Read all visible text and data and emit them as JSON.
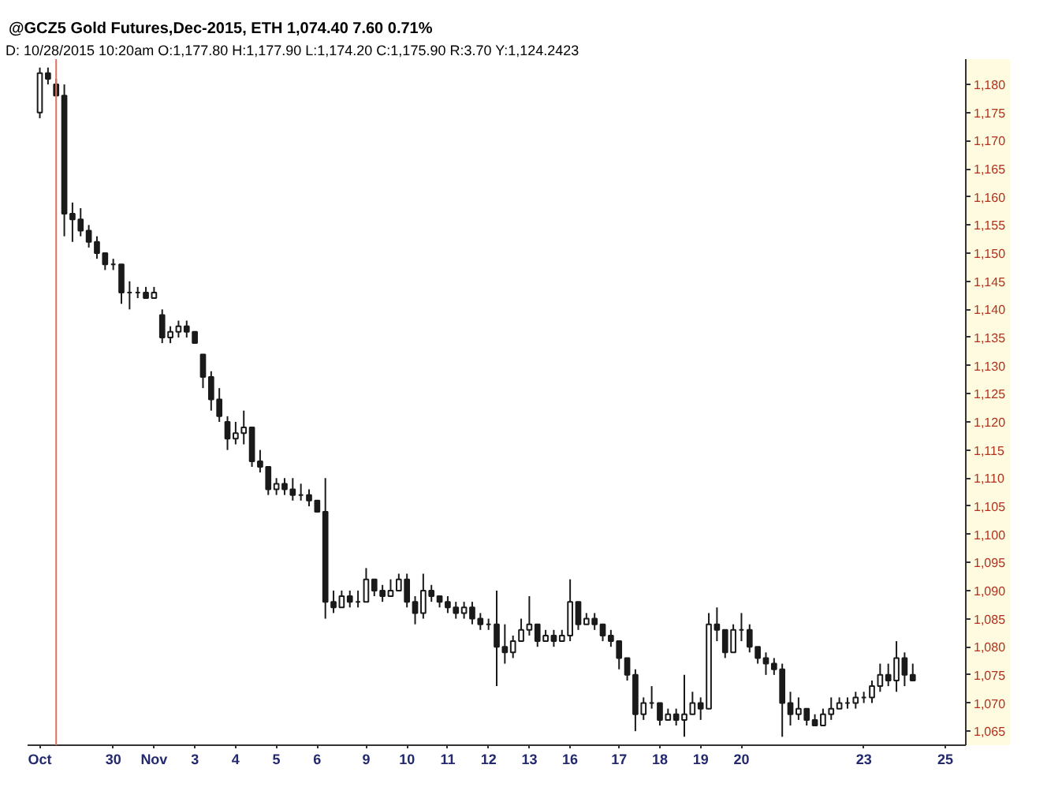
{
  "chart_data": {
    "type": "candlestick",
    "title": "@GCZ5 Gold Futures,Dec-2015, ETH  1,074.40  7.60  0.71%",
    "subtitle": "D: 10/28/2015  10:20am O:1,177.80 H:1,177.90 L:1,174.20 C:1,175.90 R:3.70 Y:1,124.2423",
    "color": "#1a1a1a",
    "categories": [
      null,
      "Oct",
      null,
      null,
      null,
      null,
      null,
      null,
      null,
      null,
      "30",
      null,
      null,
      null,
      null,
      "Nov",
      null,
      null,
      null,
      null,
      "3",
      null,
      null,
      null,
      null,
      "4",
      null,
      null,
      null,
      null,
      "5",
      null,
      null,
      null,
      null,
      "6",
      null,
      null,
      null,
      null,
      null,
      "9",
      null,
      null,
      null,
      null,
      "10",
      null,
      null,
      null,
      null,
      "11",
      null,
      null,
      null,
      null,
      "12",
      null,
      null,
      null,
      null,
      "13",
      null,
      null,
      null,
      null,
      "16",
      null,
      null,
      null,
      null,
      null,
      "17",
      null,
      null,
      null,
      null,
      "18",
      null,
      null,
      null,
      null,
      "19",
      null,
      null,
      null,
      null,
      "20",
      null,
      null,
      null,
      null,
      null,
      null,
      null,
      null,
      null,
      null,
      null,
      null,
      null,
      null,
      "23",
      null,
      null,
      null,
      null,
      null,
      null,
      null,
      null,
      null,
      "25",
      null,
      null
    ],
    "ohlc": [
      null,
      [
        1175,
        1183,
        1174,
        1182
      ],
      [
        1182,
        1183,
        1180,
        1181
      ],
      [
        1180,
        1181,
        1178,
        1178
      ],
      [
        1178,
        1180,
        1153,
        1157
      ],
      [
        1157,
        1159,
        1152,
        1156
      ],
      [
        1156,
        1158,
        1153,
        1154
      ],
      [
        1154,
        1155,
        1151,
        1152
      ],
      [
        1152,
        1153,
        1149,
        1150
      ],
      [
        1150,
        1150,
        1147,
        1148
      ],
      [
        1148,
        1149,
        1147,
        1148
      ],
      [
        1148,
        1148,
        1141,
        1143
      ],
      [
        1143,
        1145,
        1140,
        1143
      ],
      [
        1143,
        1144,
        1142,
        1143
      ],
      [
        1143,
        1144,
        1142,
        1142
      ],
      [
        1142,
        1144,
        1142,
        1143
      ],
      [
        1139,
        1140,
        1134,
        1135
      ],
      [
        1135,
        1137,
        1134,
        1136
      ],
      [
        1136,
        1138,
        1135,
        1137
      ],
      [
        1137,
        1138,
        1135,
        1136
      ],
      [
        1136,
        1136,
        1134,
        1134
      ],
      [
        1132,
        1132,
        1126,
        1128
      ],
      [
        1128,
        1129,
        1122,
        1124
      ],
      [
        1124,
        1126,
        1120,
        1121
      ],
      [
        1120,
        1121,
        1115,
        1117
      ],
      [
        1117,
        1120,
        1116,
        1118
      ],
      [
        1118,
        1122,
        1116,
        1119
      ],
      [
        1119,
        1119,
        1112,
        1113
      ],
      [
        1113,
        1115,
        1111,
        1112
      ],
      [
        1112,
        1112,
        1107,
        1108
      ],
      [
        1108,
        1110,
        1107,
        1109
      ],
      [
        1109,
        1110,
        1107,
        1108
      ],
      [
        1108,
        1110,
        1106,
        1107
      ],
      [
        1107,
        1109,
        1106,
        1107
      ],
      [
        1107,
        1108,
        1105,
        1106
      ],
      [
        1106,
        1106,
        1104,
        1104
      ],
      [
        1104,
        1110,
        1085,
        1088
      ],
      [
        1088,
        1090,
        1086,
        1087
      ],
      [
        1087,
        1090,
        1087,
        1089
      ],
      [
        1089,
        1090,
        1087,
        1088
      ],
      [
        1088,
        1090,
        1087,
        1088
      ],
      [
        1088,
        1094,
        1088,
        1092
      ],
      [
        1092,
        1092,
        1089,
        1090
      ],
      [
        1090,
        1091,
        1088,
        1089
      ],
      [
        1089,
        1092,
        1089,
        1090
      ],
      [
        1090,
        1093,
        1090,
        1092
      ],
      [
        1092,
        1093,
        1087,
        1088
      ],
      [
        1088,
        1089,
        1084,
        1086
      ],
      [
        1086,
        1093,
        1085,
        1090
      ],
      [
        1090,
        1091,
        1088,
        1089
      ],
      [
        1089,
        1089,
        1087,
        1088
      ],
      [
        1088,
        1089,
        1086,
        1087
      ],
      [
        1087,
        1088,
        1085,
        1086
      ],
      [
        1086,
        1088,
        1085,
        1087
      ],
      [
        1087,
        1088,
        1084,
        1085
      ],
      [
        1085,
        1086,
        1083,
        1084
      ],
      [
        1084,
        1085,
        1083,
        1084
      ],
      [
        1084,
        1090,
        1073,
        1080
      ],
      [
        1080,
        1084,
        1077,
        1079
      ],
      [
        1079,
        1082,
        1078,
        1081
      ],
      [
        1081,
        1085,
        1081,
        1083
      ],
      [
        1083,
        1089,
        1082,
        1084
      ],
      [
        1084,
        1084,
        1080,
        1081
      ],
      [
        1081,
        1083,
        1081,
        1082
      ],
      [
        1082,
        1083,
        1080,
        1081
      ],
      [
        1081,
        1083,
        1081,
        1082
      ],
      [
        1082,
        1092,
        1081,
        1088
      ],
      [
        1088,
        1088,
        1083,
        1084
      ],
      [
        1084,
        1086,
        1084,
        1085
      ],
      [
        1085,
        1086,
        1083,
        1084
      ],
      [
        1084,
        1084,
        1081,
        1082
      ],
      [
        1082,
        1083,
        1080,
        1081
      ],
      [
        1081,
        1081,
        1076,
        1078
      ],
      [
        1078,
        1078,
        1074,
        1075
      ],
      [
        1075,
        1076,
        1065,
        1068
      ],
      [
        1068,
        1071,
        1067,
        1070
      ],
      [
        1070,
        1073,
        1069,
        1070
      ],
      [
        1070,
        1070,
        1066,
        1067
      ],
      [
        1067,
        1069,
        1067,
        1068
      ],
      [
        1068,
        1069,
        1066,
        1067
      ],
      [
        1067,
        1075,
        1064,
        1068
      ],
      [
        1068,
        1072,
        1068,
        1070
      ],
      [
        1070,
        1071,
        1067,
        1069
      ],
      [
        1069,
        1086,
        1069,
        1084
      ],
      [
        1084,
        1087,
        1081,
        1083
      ],
      [
        1083,
        1083,
        1078,
        1079
      ],
      [
        1079,
        1084,
        1079,
        1083
      ],
      [
        1083,
        1086,
        1081,
        1083
      ],
      [
        1083,
        1084,
        1079,
        1080
      ],
      [
        1080,
        1080,
        1077,
        1078
      ],
      [
        1078,
        1079,
        1075,
        1077
      ],
      [
        1077,
        1078,
        1075,
        1076
      ],
      [
        1076,
        1077,
        1064,
        1070
      ],
      [
        1070,
        1072,
        1066,
        1068
      ],
      [
        1068,
        1071,
        1067,
        1069
      ],
      [
        1069,
        1069,
        1066,
        1067
      ],
      [
        1067,
        1068,
        1066,
        1066
      ],
      [
        1066,
        1069,
        1066,
        1068
      ],
      [
        1068,
        1071,
        1067,
        1069
      ],
      [
        1069,
        1071,
        1069,
        1070
      ],
      [
        1070,
        1071,
        1069,
        1070
      ],
      [
        1070,
        1072,
        1069,
        1071
      ],
      [
        1071,
        1072,
        1070,
        1071
      ],
      [
        1071,
        1074,
        1070,
        1073
      ],
      [
        1073,
        1077,
        1072,
        1075
      ],
      [
        1075,
        1077,
        1073,
        1074
      ],
      [
        1074,
        1081,
        1072,
        1078
      ],
      [
        1078,
        1079,
        1073,
        1075
      ],
      [
        1075,
        1077,
        1074,
        1074
      ],
      null,
      null,
      null,
      null,
      null,
      null
    ],
    "ylim": [
      1062.5,
      1184.5
    ],
    "yticks": [
      {
        "value": 1065,
        "label": "1,065"
      },
      {
        "value": 1070,
        "label": "1,070"
      },
      {
        "value": 1075,
        "label": "1,075"
      },
      {
        "value": 1080,
        "label": "1,080"
      },
      {
        "value": 1085,
        "label": "1,085"
      },
      {
        "value": 1090,
        "label": "1,090"
      },
      {
        "value": 1095,
        "label": "1,095"
      },
      {
        "value": 1100,
        "label": "1,100"
      },
      {
        "value": 1105,
        "label": "1,105"
      },
      {
        "value": 1110,
        "label": "1,110"
      },
      {
        "value": 1115,
        "label": "1,115"
      },
      {
        "value": 1120,
        "label": "1,120"
      },
      {
        "value": 1125,
        "label": "1,125"
      },
      {
        "value": 1130,
        "label": "1,130"
      },
      {
        "value": 1135,
        "label": "1,135"
      },
      {
        "value": 1140,
        "label": "1,140"
      },
      {
        "value": 1145,
        "label": "1,145"
      },
      {
        "value": 1150,
        "label": "1,150"
      },
      {
        "value": 1155,
        "label": "1,155"
      },
      {
        "value": 1160,
        "label": "1,160"
      },
      {
        "value": 1165,
        "label": "1,165"
      },
      {
        "value": 1170,
        "label": "1,170"
      },
      {
        "value": 1175,
        "label": "1,175"
      },
      {
        "value": 1180,
        "label": "1,180"
      }
    ]
  }
}
